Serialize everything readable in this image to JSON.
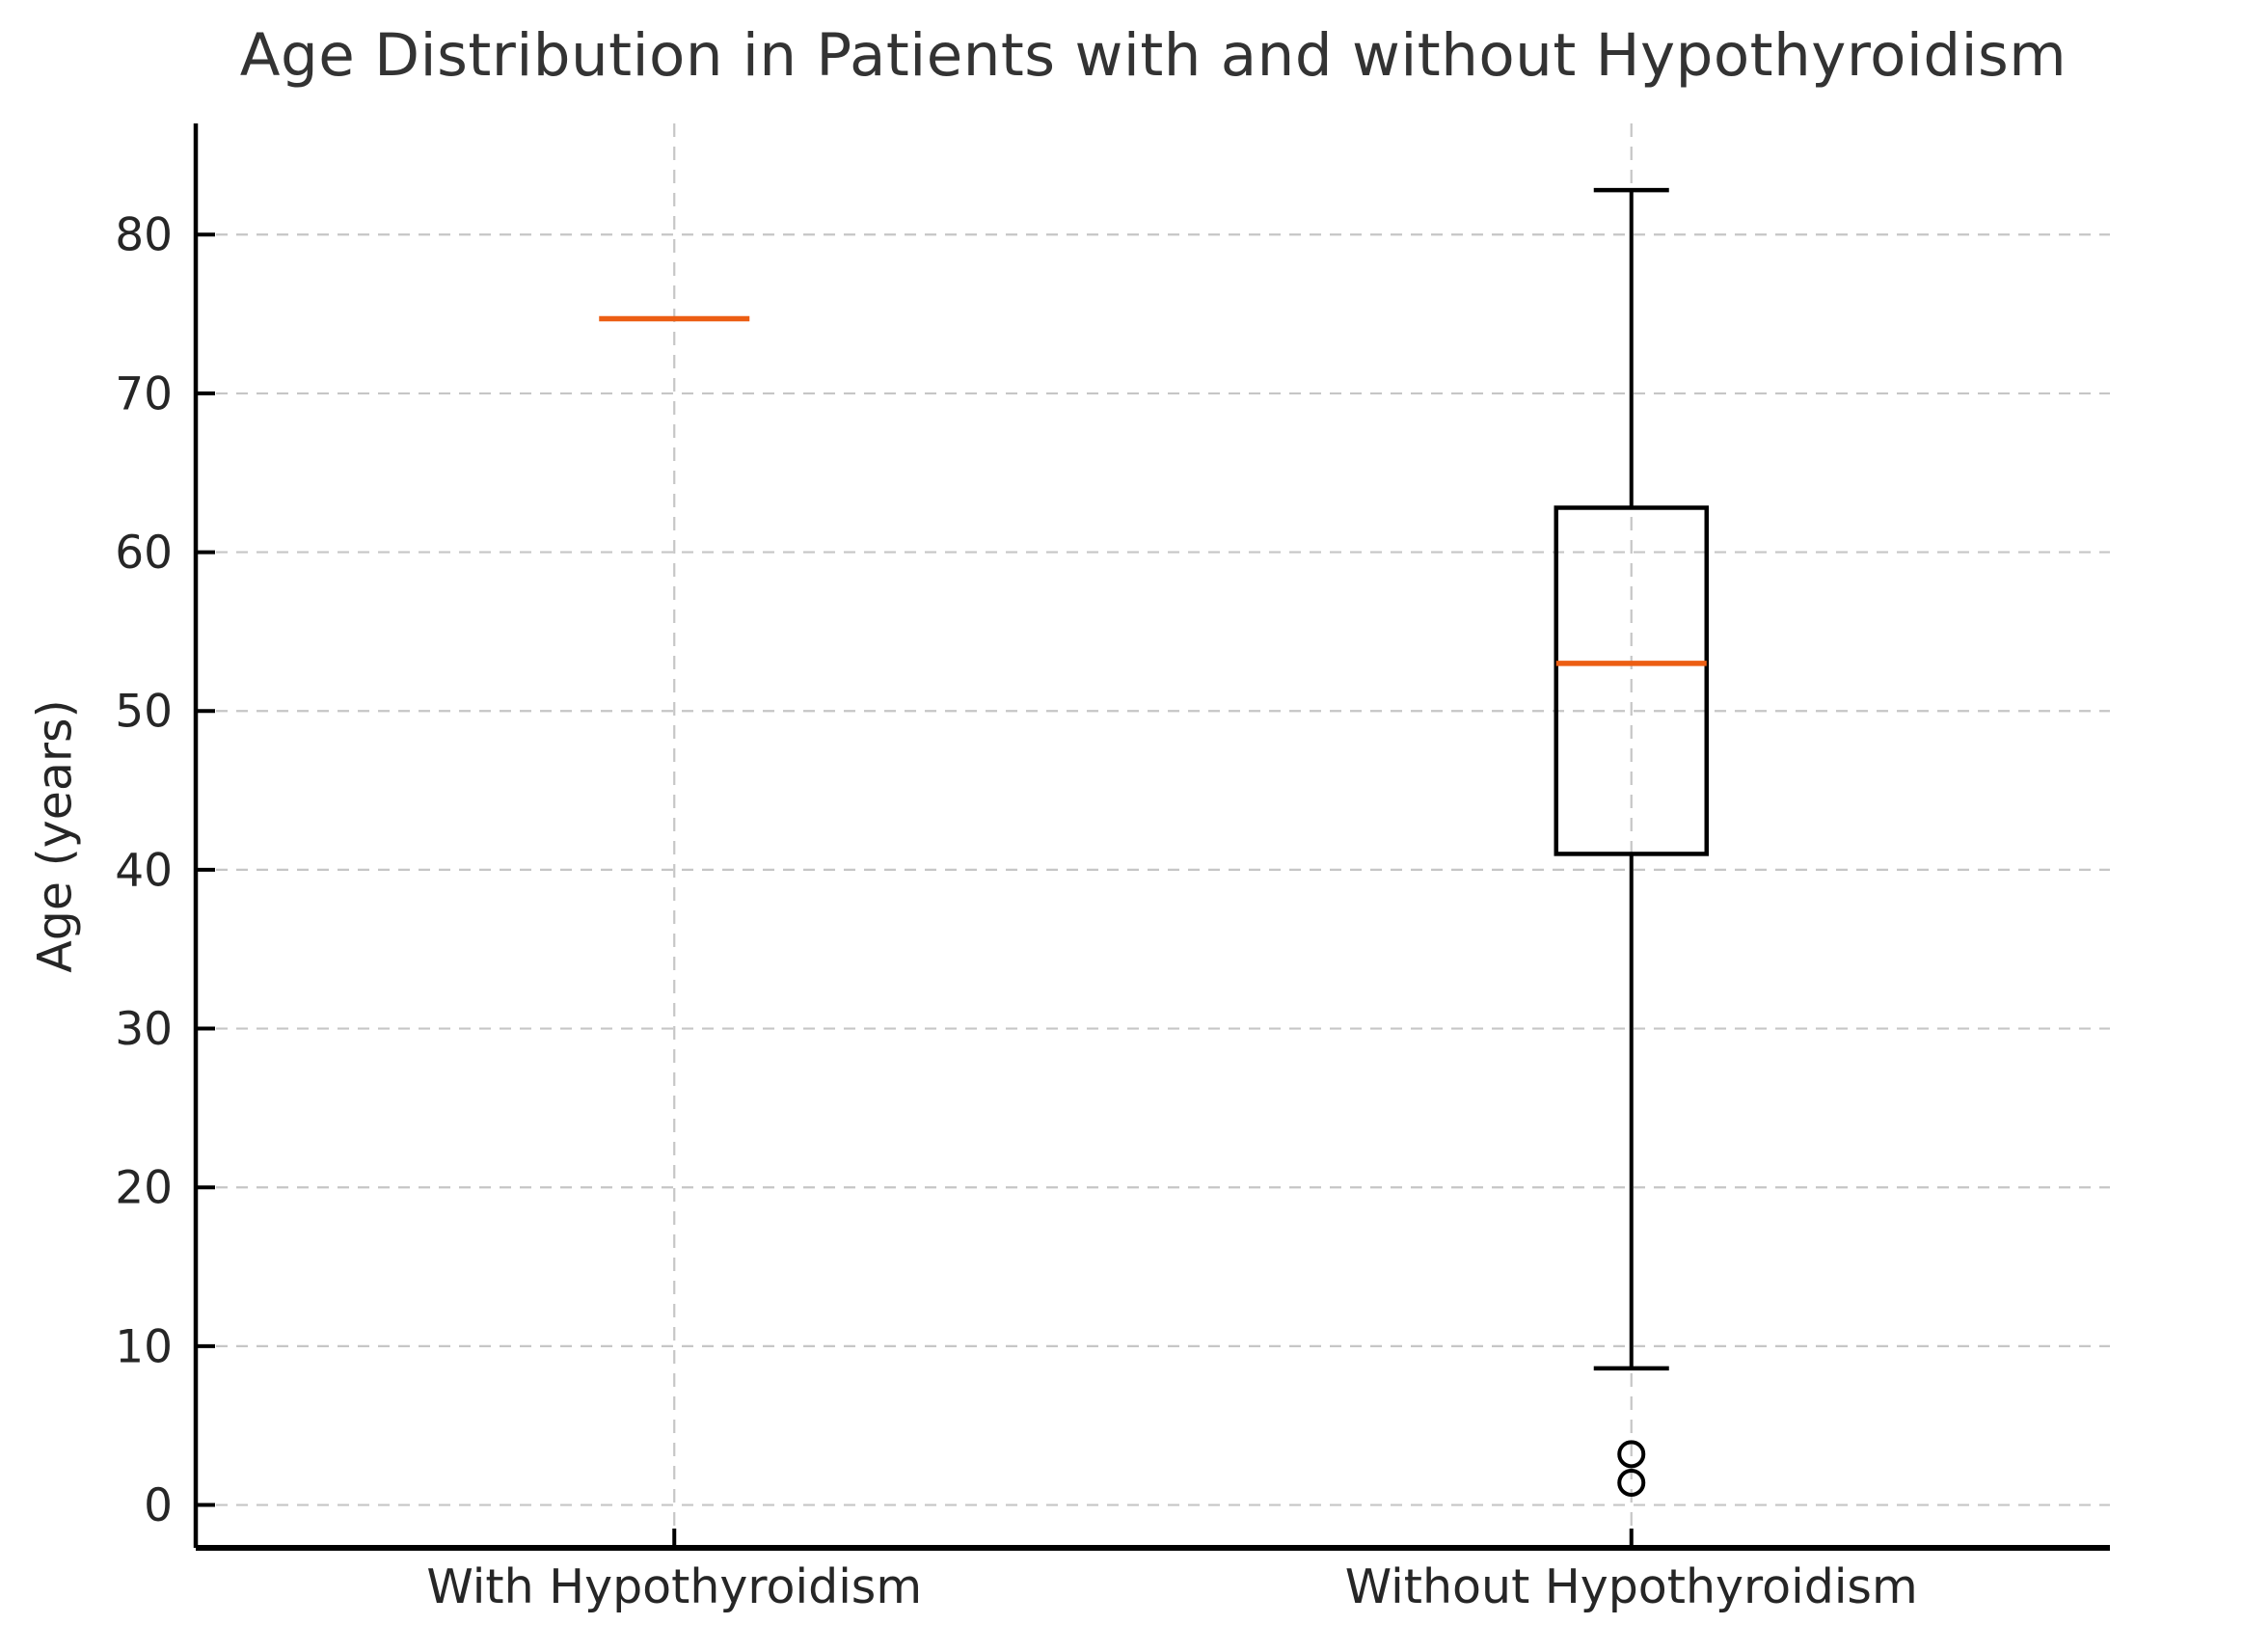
{
  "chart_data": {
    "type": "boxplot",
    "title": "Age Distribution in Patients with and without Hypothyroidism",
    "ylabel": "Age (years)",
    "xlabel": "",
    "categories": [
      "With Hypothyroidism",
      "Without Hypothyroidism"
    ],
    "yticks": [
      0,
      10,
      20,
      30,
      40,
      50,
      60,
      70,
      80
    ],
    "ylim": [
      -2.7,
      87.0
    ],
    "grid": "dashed gridlines on both axes, ticks point inward, only left and bottom spines",
    "legend_position": "none",
    "series": [
      {
        "name": "With Hypothyroidism",
        "median": 74.7,
        "q1": 74.7,
        "q3": 74.7,
        "whisker_low": 74.7,
        "whisker_high": 74.7,
        "outliers": [],
        "note": "degenerate box - only orange median line visible"
      },
      {
        "name": "Without Hypothyroidism",
        "median": 53,
        "q1": 41,
        "q3": 62.8,
        "whisker_low": 8.6,
        "whisker_high": 82.8,
        "outliers": [
          3.2,
          1.4
        ]
      }
    ],
    "colors": {
      "median": "#ec5e13",
      "box_line": "#000000",
      "grid": "#c6c6c6",
      "tick_text": "#262626",
      "title_text": "#333333",
      "background": "#ffffff"
    }
  }
}
